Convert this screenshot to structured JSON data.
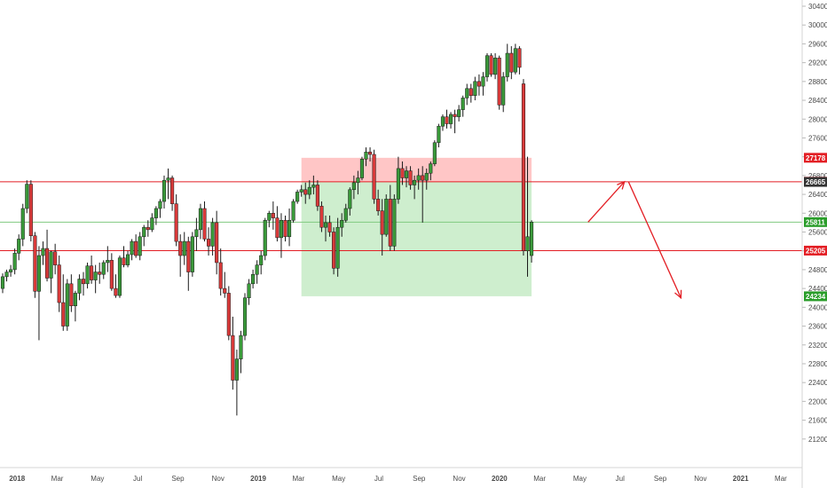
{
  "chart_data": {
    "type": "candlestick",
    "title": "",
    "ylim": [
      20800,
      30400
    ],
    "y_ticks": [
      21200,
      21600,
      22000,
      22400,
      22800,
      23200,
      23600,
      24000,
      24400,
      24800,
      25200,
      25600,
      26000,
      26400,
      26800,
      27200,
      27600,
      28000,
      28400,
      28800,
      29200,
      29600,
      30000,
      30400
    ],
    "x_ticks": [
      "2018",
      "Mar",
      "May",
      "Jul",
      "Sep",
      "Nov",
      "2019",
      "Mar",
      "May",
      "Jul",
      "Sep",
      "Nov",
      "2020",
      "Mar",
      "May",
      "Jul",
      "Sep",
      "Nov",
      "2021",
      "Mar"
    ],
    "bold_x_ticks": [
      "2018",
      "2019",
      "2020",
      "2021"
    ],
    "up_color": "#3a9a3a",
    "down_color": "#d93a3a",
    "candles": [
      [
        24400,
        24720,
        24300,
        24650
      ],
      [
        24650,
        24800,
        24550,
        24750
      ],
      [
        24750,
        24900,
        24650,
        24800
      ],
      [
        24800,
        25250,
        24700,
        25150
      ],
      [
        25150,
        25550,
        25000,
        25450
      ],
      [
        25450,
        26200,
        25300,
        26100
      ],
      [
        26100,
        26700,
        26000,
        26617
      ],
      [
        26617,
        26700,
        25400,
        25520
      ],
      [
        25520,
        25600,
        24200,
        24340
      ],
      [
        24340,
        25300,
        23300,
        25100
      ],
      [
        25100,
        25400,
        24900,
        25250
      ],
      [
        25250,
        25650,
        24550,
        24620
      ],
      [
        24620,
        25200,
        24300,
        25180
      ],
      [
        25180,
        25350,
        24700,
        24900
      ],
      [
        24900,
        25100,
        23900,
        24100
      ],
      [
        24100,
        24700,
        23500,
        23600
      ],
      [
        23600,
        24600,
        23500,
        24500
      ],
      [
        24500,
        24700,
        23900,
        24030
      ],
      [
        24030,
        24350,
        23700,
        24300
      ],
      [
        24300,
        24700,
        24150,
        24600
      ],
      [
        24600,
        24750,
        24250,
        24500
      ],
      [
        24500,
        24950,
        24400,
        24880
      ],
      [
        24880,
        25100,
        24500,
        24580
      ],
      [
        24580,
        24900,
        24300,
        24750
      ],
      [
        24750,
        24950,
        24500,
        24700
      ],
      [
        24700,
        25000,
        24600,
        24950
      ],
      [
        24950,
        25300,
        24750,
        25000
      ],
      [
        25000,
        25150,
        24350,
        24400
      ],
      [
        24400,
        24700,
        24200,
        24250
      ],
      [
        24250,
        25100,
        24200,
        25050
      ],
      [
        25050,
        25300,
        24850,
        24900
      ],
      [
        24900,
        25200,
        24850,
        25120
      ],
      [
        25120,
        25450,
        25000,
        25400
      ],
      [
        25400,
        25550,
        25050,
        25100
      ],
      [
        25100,
        25600,
        25000,
        25500
      ],
      [
        25500,
        25750,
        25300,
        25700
      ],
      [
        25700,
        25850,
        25500,
        25650
      ],
      [
        25650,
        26000,
        25600,
        25900
      ],
      [
        25900,
        26150,
        25750,
        26100
      ],
      [
        26100,
        26300,
        25900,
        26250
      ],
      [
        26250,
        26800,
        26100,
        26700
      ],
      [
        26700,
        26950,
        26300,
        26750
      ],
      [
        26750,
        26800,
        26050,
        26200
      ],
      [
        26200,
        26400,
        25300,
        25400
      ],
      [
        25400,
        25550,
        24650,
        25100
      ],
      [
        25100,
        25600,
        24900,
        25400
      ],
      [
        25400,
        25500,
        24350,
        24750
      ],
      [
        24750,
        25600,
        24650,
        25500
      ],
      [
        25500,
        25900,
        25200,
        25650
      ],
      [
        25650,
        26200,
        25450,
        26100
      ],
      [
        26100,
        26250,
        25400,
        25450
      ],
      [
        25450,
        25700,
        25100,
        25300
      ],
      [
        25300,
        25900,
        25100,
        25800
      ],
      [
        25800,
        26050,
        24700,
        24950
      ],
      [
        24950,
        25250,
        24250,
        24400
      ],
      [
        24400,
        24750,
        24200,
        24300
      ],
      [
        24300,
        24450,
        23300,
        23400
      ],
      [
        23400,
        23800,
        22250,
        22450
      ],
      [
        22450,
        23100,
        21700,
        22900
      ],
      [
        22900,
        23500,
        22600,
        23400
      ],
      [
        23400,
        24300,
        23300,
        24200
      ],
      [
        24200,
        24600,
        24050,
        24500
      ],
      [
        24500,
        24800,
        24400,
        24700
      ],
      [
        24700,
        25000,
        24500,
        24900
      ],
      [
        24900,
        25200,
        24700,
        25100
      ],
      [
        25100,
        25900,
        25000,
        25850
      ],
      [
        25850,
        26050,
        25700,
        26000
      ],
      [
        26000,
        26250,
        25650,
        25900
      ],
      [
        25900,
        26150,
        25400,
        25480
      ],
      [
        25480,
        26000,
        25050,
        25850
      ],
      [
        25850,
        25950,
        25400,
        25500
      ],
      [
        25500,
        26100,
        25300,
        25850
      ],
      [
        25850,
        26300,
        25800,
        26250
      ],
      [
        26250,
        26500,
        26200,
        26450
      ],
      [
        26450,
        26600,
        26350,
        26500
      ],
      [
        26500,
        26650,
        26200,
        26400
      ],
      [
        26400,
        26700,
        26300,
        26550
      ],
      [
        26550,
        26800,
        26400,
        26600
      ],
      [
        26600,
        26700,
        26050,
        26150
      ],
      [
        26150,
        26250,
        25600,
        25700
      ],
      [
        25700,
        25950,
        25400,
        25800
      ],
      [
        25800,
        25950,
        25500,
        25600
      ],
      [
        25600,
        25700,
        24700,
        24830
      ],
      [
        24830,
        25900,
        24650,
        25700
      ],
      [
        25700,
        26000,
        25500,
        25850
      ],
      [
        25850,
        26200,
        25800,
        26100
      ],
      [
        26100,
        26550,
        25950,
        26500
      ],
      [
        26500,
        26800,
        26300,
        26650
      ],
      [
        26650,
        26900,
        26400,
        26750
      ],
      [
        26750,
        27200,
        26700,
        27150
      ],
      [
        27150,
        27400,
        27000,
        27300
      ],
      [
        27300,
        27400,
        27100,
        27250
      ],
      [
        27250,
        27350,
        26200,
        26300
      ],
      [
        26300,
        26500,
        25950,
        26050
      ],
      [
        26050,
        26300,
        25100,
        25550
      ],
      [
        25550,
        26400,
        25500,
        26300
      ],
      [
        26300,
        26600,
        25200,
        25300
      ],
      [
        25300,
        26400,
        25200,
        26300
      ],
      [
        26300,
        27200,
        26200,
        26950
      ],
      [
        26950,
        27100,
        26600,
        26750
      ],
      [
        26750,
        27000,
        26550,
        26900
      ],
      [
        26900,
        27000,
        26500,
        26600
      ],
      [
        26600,
        26800,
        26300,
        26700
      ],
      [
        26700,
        26950,
        26500,
        26800
      ],
      [
        26800,
        27000,
        25800,
        26700
      ],
      [
        26700,
        26950,
        26500,
        26850
      ],
      [
        26850,
        27100,
        26700,
        27050
      ],
      [
        27050,
        27550,
        27000,
        27500
      ],
      [
        27500,
        27900,
        27400,
        27850
      ],
      [
        27850,
        28100,
        27750,
        28050
      ],
      [
        28050,
        28200,
        27800,
        27900
      ],
      [
        27900,
        28150,
        27800,
        28100
      ],
      [
        28100,
        28200,
        27700,
        28050
      ],
      [
        28050,
        28300,
        27950,
        28200
      ],
      [
        28200,
        28500,
        28050,
        28450
      ],
      [
        28450,
        28750,
        28300,
        28650
      ],
      [
        28650,
        28750,
        28350,
        28500
      ],
      [
        28500,
        28900,
        28400,
        28800
      ],
      [
        28800,
        28950,
        28500,
        28700
      ],
      [
        28700,
        29000,
        28500,
        28900
      ],
      [
        28900,
        29400,
        28800,
        29350
      ],
      [
        29350,
        29400,
        28900,
        28950
      ],
      [
        28950,
        29400,
        28850,
        29300
      ],
      [
        29300,
        29350,
        28200,
        28300
      ],
      [
        28300,
        29000,
        28150,
        28900
      ],
      [
        28900,
        29600,
        28800,
        29400
      ],
      [
        29400,
        29550,
        28850,
        29000
      ],
      [
        29000,
        29600,
        28950,
        29500
      ],
      [
        29500,
        29550,
        28950,
        29100
      ],
      [
        28750,
        28850,
        25100,
        25200
      ],
      [
        25200,
        27200,
        24650,
        25500
      ],
      [
        25100,
        25850,
        24950,
        25811
      ]
    ],
    "x_anchor_index": 133,
    "x_anchor_label": "Mar",
    "levels": [
      {
        "label": "27178",
        "value": 27178,
        "color": "#e31e24"
      },
      {
        "label": "26669",
        "value": 26669,
        "color": "#e31e24"
      },
      {
        "label": "26665",
        "value": 26665,
        "color": "#333333"
      },
      {
        "label": "25811",
        "value": 25811,
        "color": "#2a9d2a"
      },
      {
        "label": "25205",
        "value": 25205,
        "color": "#e31e24"
      },
      {
        "label": "24234",
        "value": 24234,
        "color": "#2a9d2a"
      }
    ],
    "horizontal_lines": [
      {
        "value": 26669,
        "color": "#e31e24"
      },
      {
        "value": 25811,
        "color": "#7fc97f"
      },
      {
        "value": 25205,
        "color": "#e31e24"
      }
    ],
    "risk_reward": {
      "start_index": 74,
      "end_index": 131,
      "entry": 26669,
      "stop": 27178,
      "target": 24234,
      "stop_color": "#ffb3b3",
      "target_color": "#bde8bd"
    },
    "projection_arrows": [
      {
        "from": [
          145,
          25811
        ],
        "to": [
          154,
          26669
        ]
      },
      {
        "from": [
          155,
          26669
        ],
        "to": [
          168,
          24200
        ]
      }
    ]
  }
}
